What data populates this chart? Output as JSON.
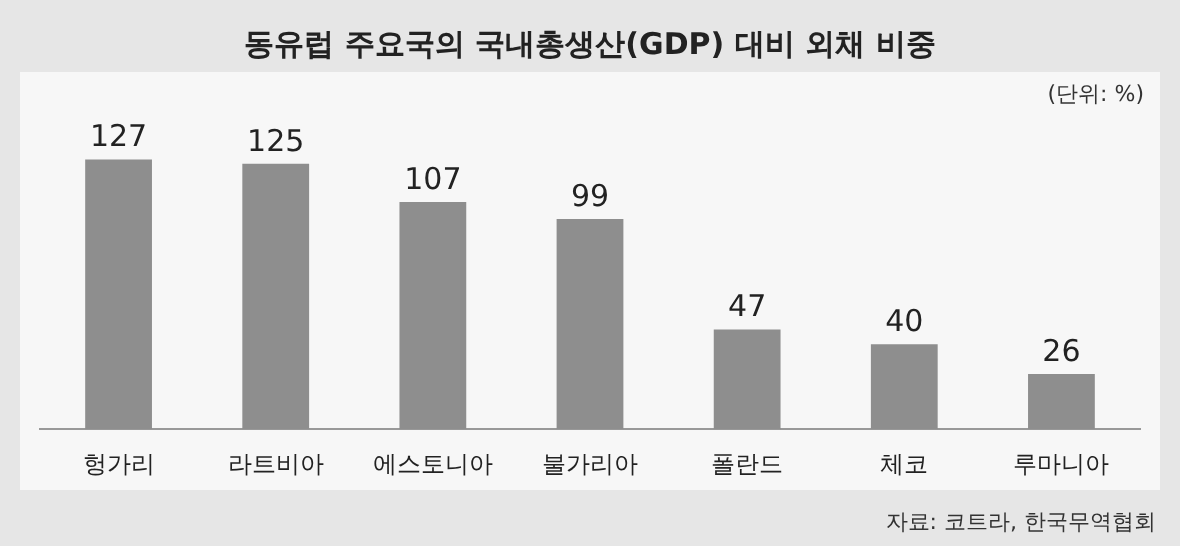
{
  "chart_data": {
    "type": "bar",
    "title": "동유럽 주요국의 국내총생산(GDP) 대비 외채 비중",
    "categories": [
      "헝가리",
      "라트비아",
      "에스토니아",
      "불가리아",
      "폴란드",
      "체코",
      "루마니아"
    ],
    "values": [
      127,
      125,
      107,
      99,
      47,
      40,
      26
    ],
    "color": "#8e8e8e",
    "data_labels": true,
    "annotations": [
      "(단위: %)",
      "자료: 코트라, 한국무역협회"
    ]
  }
}
